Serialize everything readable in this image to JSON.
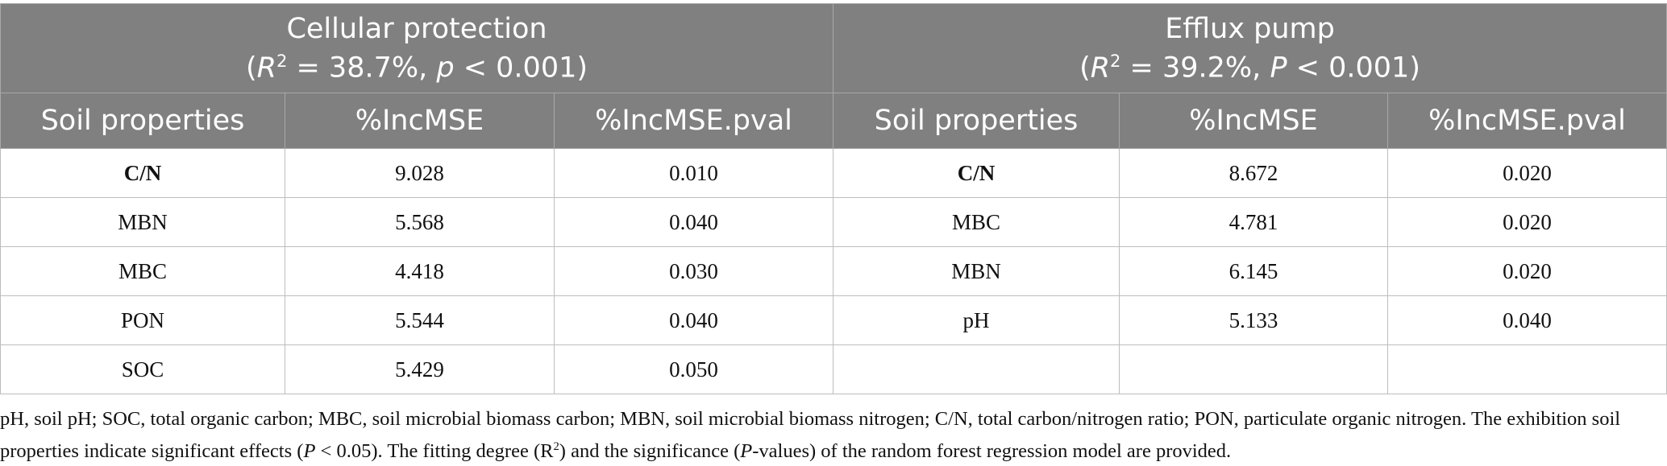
{
  "groups": [
    {
      "title": "Cellular protection",
      "subtitle": [
        "(",
        "R",
        "2",
        " = 38.7%, ",
        "p",
        " < 0.001)"
      ],
      "columns": [
        "Soil properties",
        "%IncMSE",
        "%IncMSE.pval"
      ],
      "rows": [
        [
          "C/N",
          "9.028",
          "0.010"
        ],
        [
          "MBN",
          "5.568",
          "0.040"
        ],
        [
          "MBC",
          "4.418",
          "0.030"
        ],
        [
          "PON",
          "5.544",
          "0.040"
        ],
        [
          "SOC",
          "5.429",
          "0.050"
        ]
      ]
    },
    {
      "title": "Efflux pump",
      "subtitle": [
        "(",
        "R",
        "2",
        " = 39.2%, ",
        "P",
        " < 0.001)"
      ],
      "columns": [
        "Soil properties",
        "%IncMSE",
        "%IncMSE.pval"
      ],
      "rows": [
        [
          "C/N",
          "8.672",
          "0.020"
        ],
        [
          "MBC",
          "4.781",
          "0.020"
        ],
        [
          "MBN",
          "6.145",
          "0.020"
        ],
        [
          "pH",
          "5.133",
          "0.040"
        ]
      ]
    }
  ],
  "footnote": [
    "pH, soil pH; SOC, total organic carbon; MBC, soil microbial biomass carbon; MBN, soil microbial biomass nitrogen; C/N, total carbon/nitrogen ratio; PON, particulate organic nitrogen. The exhibition soil properties indicate significant effects (",
    "P",
    " < 0.05). The fitting degree (R",
    "2",
    ") and the significance (",
    "P",
    "-values) of the random forest regression model are provided."
  ]
}
